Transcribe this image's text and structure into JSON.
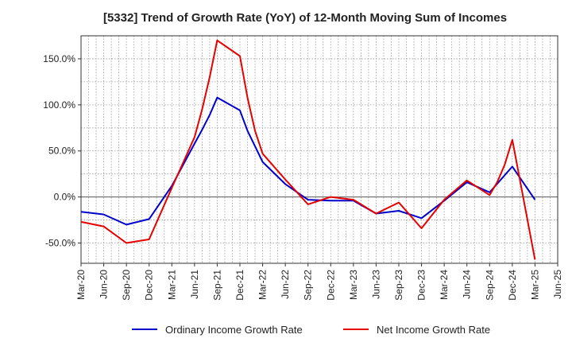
{
  "chart_data": {
    "type": "line",
    "title": "[5332]  Trend of Growth Rate (YoY) of 12-Month Moving Sum of Incomes",
    "xlabel": "",
    "ylabel": "",
    "grid": true,
    "legend_position": "bottom",
    "ylim": [
      -72,
      175
    ],
    "y_ticks": [
      150,
      100,
      50,
      0,
      -50
    ],
    "y_tick_labels": [
      "150.0%",
      "100.0%",
      "50.0%",
      "0.0%",
      "-50.0%"
    ],
    "x_tick_labels": [
      "Mar-20",
      "Jun-20",
      "Sep-20",
      "Dec-20",
      "Mar-21",
      "Jun-21",
      "Sep-21",
      "Dec-21",
      "Mar-22",
      "Jun-22",
      "Sep-22",
      "Dec-22",
      "Mar-23",
      "Jun-23",
      "Sep-23",
      "Dec-23",
      "Mar-24",
      "Jun-24",
      "Sep-24",
      "Dec-24",
      "Mar-25",
      "Jun-25"
    ],
    "series": [
      {
        "name": "Ordinary Income Growth Rate",
        "color": "#0000cc",
        "x": [
          "Mar-20",
          "Jun-20",
          "Sep-20",
          "Dec-20",
          "Mar-21",
          "Jun-21",
          "Jul-21",
          "Aug-21",
          "Sep-21",
          "Dec-21",
          "Jan-22",
          "Mar-22",
          "Jun-22",
          "Sep-22",
          "Dec-22",
          "Mar-23",
          "Jun-23",
          "Sep-23",
          "Dec-23",
          "Mar-24",
          "Jun-24",
          "Sep-24",
          "Dec-24",
          "Mar-25"
        ],
        "values": [
          -16,
          -19,
          -30,
          -24,
          12,
          58,
          73,
          89,
          108,
          94,
          72,
          38,
          14,
          -3,
          -4,
          -4,
          -18,
          -15,
          -23,
          -4,
          16,
          5,
          33,
          -3
        ]
      },
      {
        "name": "Net Income Growth Rate",
        "color": "#e60000",
        "x": [
          "Mar-20",
          "Jun-20",
          "Sep-20",
          "Dec-20",
          "Mar-21",
          "Jun-21",
          "Jul-21",
          "Aug-21",
          "Sep-21",
          "Dec-21",
          "Jan-22",
          "Feb-22",
          "Mar-22",
          "Jun-22",
          "Sep-22",
          "Dec-22",
          "Mar-23",
          "Jun-23",
          "Sep-23",
          "Dec-23",
          "Mar-24",
          "Jun-24",
          "Sep-24",
          "Oct-24",
          "Nov-24",
          "Dec-24",
          "Mar-25"
        ],
        "values": [
          -27,
          -32,
          -50,
          -46,
          10,
          65,
          95,
          130,
          170,
          153,
          108,
          72,
          47,
          19,
          -8,
          0,
          -3,
          -18,
          -6,
          -34,
          -3,
          18,
          2,
          16,
          35,
          62,
          -68
        ]
      }
    ]
  }
}
